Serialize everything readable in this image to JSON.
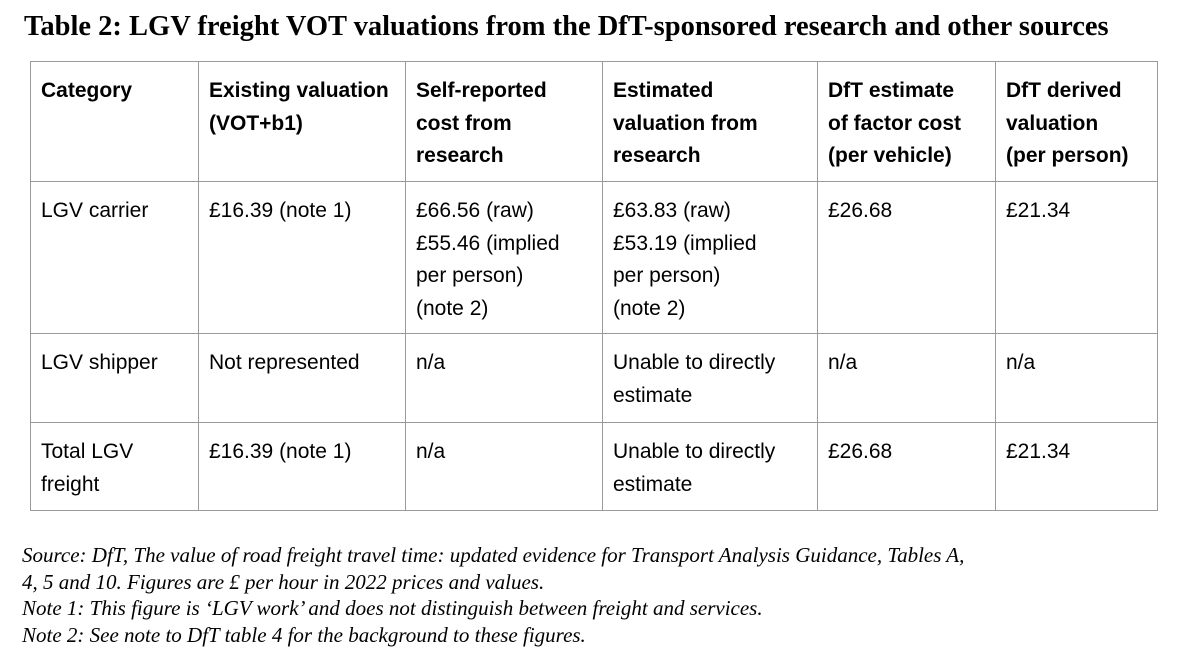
{
  "title": "Table 2: LGV freight VOT valuations from the DfT-sponsored research and other sources",
  "table": {
    "headers": [
      "Category",
      "Existing valuation\n(VOT+b1)",
      "Self-reported\ncost from\nresearch",
      "Estimated\nvaluation from\nresearch",
      "DfT estimate\nof factor cost\n(per vehicle)",
      "DfT derived\nvaluation\n(per person)"
    ],
    "rows": [
      [
        "LGV carrier",
        "£16.39 (note 1)",
        "£66.56 (raw)\n£55.46 (implied\nper person)\n(note 2)",
        "£63.83 (raw)\n£53.19 (implied\nper person)\n(note 2)",
        "£26.68",
        "£21.34"
      ],
      [
        "LGV shipper",
        "Not represented",
        "n/a",
        "Unable to directly\nestimate",
        "n/a",
        "n/a"
      ],
      [
        "Total LGV\nfreight",
        "£16.39 (note 1)",
        "n/a",
        "Unable to directly\nestimate",
        "£26.68",
        "£21.34"
      ]
    ]
  },
  "notes": {
    "source_line1": "Source: DfT, The value of road freight travel time: updated evidence for Transport Analysis Guidance, Tables A,",
    "source_line2": "4, 5 and 10. Figures are £ per hour in 2022 prices and values.",
    "note1": "Note 1: This figure is ‘LGV work’ and does not distinguish between freight and services.",
    "note2": "Note 2: See note to DfT table 4 for the background to these figures."
  }
}
